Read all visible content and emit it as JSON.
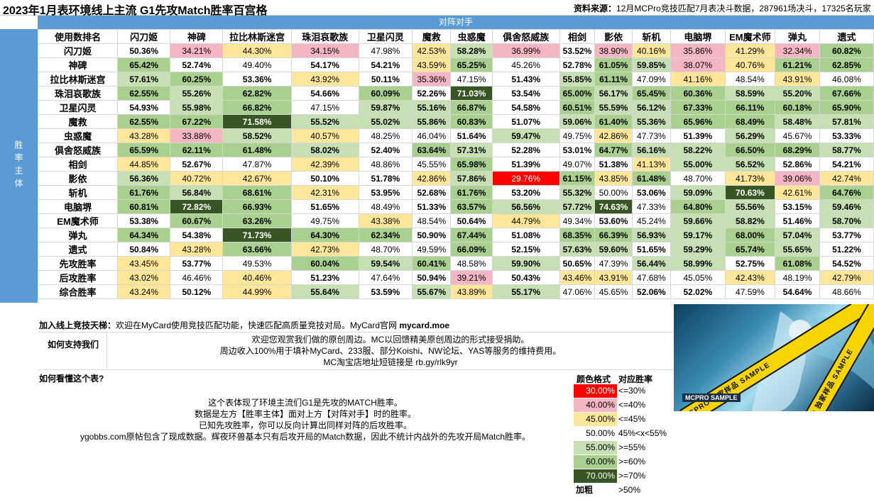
{
  "title": "2023年1月表环境线上主流 G1先攻Match胜率百宫格",
  "source_label": "资料来源：",
  "source_text": "12月MCPro竞技匹配7月表决斗数据，287961场决斗，17325名玩家",
  "opponent_header": "对阵对手",
  "subject_header": "胜率主体",
  "corner_label": "使用数排名",
  "columns": [
    "闪刀姬",
    "神碑",
    "拉比林斯迷宫",
    "珠泪哀歌族",
    "卫星闪灵",
    "魔救",
    "虫惑魔",
    "俱舍怒威族",
    "相剑",
    "影依",
    "斩机",
    "电脑堺",
    "EM魔术师",
    "弹丸",
    "遗式"
  ],
  "rows": [
    {
      "label": "闪刀姬",
      "values": [
        "50.36%",
        "34.21%",
        "44.30%",
        "34.15%",
        "47.98%",
        "42.53%",
        "58.28%",
        "36.99%",
        "53.52%",
        "38.90%",
        "40.16%",
        "35.86%",
        "41.29%",
        "32.34%",
        "60.82%"
      ],
      "classes": [
        "c4",
        "c2",
        "c3",
        "c2",
        "c4",
        "c3",
        "c5",
        "c2",
        "c4",
        "c2",
        "c3",
        "c2",
        "c3",
        "c2",
        "c6"
      ]
    },
    {
      "label": "神碑",
      "values": [
        "65.42%",
        "52.74%",
        "49.40%",
        "54.17%",
        "54.21%",
        "43.59%",
        "65.25%",
        "45.26%",
        "52.78%",
        "61.05%",
        "59.85%",
        "38.07%",
        "40.76%",
        "61.21%",
        "62.85%"
      ],
      "classes": [
        "c6",
        "c4",
        "c4",
        "c4",
        "c4",
        "c3",
        "c6",
        "c4",
        "c4",
        "c6",
        "c5",
        "c2",
        "c3",
        "c6",
        "c6"
      ]
    },
    {
      "label": "拉比林斯迷宫",
      "values": [
        "57.61%",
        "60.25%",
        "53.36%",
        "43.92%",
        "50.11%",
        "35.36%",
        "47.15%",
        "51.43%",
        "55.85%",
        "61.11%",
        "47.09%",
        "41.16%",
        "48.54%",
        "43.91%",
        "46.08%"
      ],
      "classes": [
        "c5",
        "c6",
        "c4",
        "c3",
        "c4",
        "c2",
        "c4",
        "c4",
        "c5",
        "c6",
        "c4",
        "c3",
        "c4",
        "c3",
        "c4"
      ]
    },
    {
      "label": "珠泪哀歌族",
      "values": [
        "62.55%",
        "55.26%",
        "62.82%",
        "54.66%",
        "60.09%",
        "52.26%",
        "71.03%",
        "53.54%",
        "65.00%",
        "56.17%",
        "65.45%",
        "60.36%",
        "58.59%",
        "55.20%",
        "67.66%"
      ],
      "classes": [
        "c6",
        "c5",
        "c6",
        "c4",
        "c6",
        "c4",
        "c7",
        "c4",
        "c6",
        "c5",
        "c6",
        "c6",
        "c5",
        "c5",
        "c6"
      ]
    },
    {
      "label": "卫星闪灵",
      "values": [
        "54.93%",
        "55.98%",
        "66.82%",
        "47.15%",
        "59.87%",
        "55.16%",
        "66.87%",
        "54.58%",
        "60.51%",
        "55.59%",
        "56.12%",
        "67.33%",
        "66.11%",
        "60.18%",
        "65.90%"
      ],
      "classes": [
        "c4",
        "c5",
        "c6",
        "c4",
        "c5",
        "c5",
        "c6",
        "c4",
        "c6",
        "c5",
        "c5",
        "c6",
        "c6",
        "c6",
        "c6"
      ]
    },
    {
      "label": "魔救",
      "values": [
        "62.55%",
        "67.22%",
        "71.58%",
        "55.52%",
        "55.02%",
        "55.86%",
        "60.83%",
        "51.07%",
        "59.06%",
        "61.40%",
        "55.36%",
        "65.96%",
        "68.49%",
        "58.48%",
        "57.81%"
      ],
      "classes": [
        "c6",
        "c6",
        "c7",
        "c5",
        "c5",
        "c5",
        "c6",
        "c4",
        "c5",
        "c6",
        "c5",
        "c6",
        "c6",
        "c5",
        "c5"
      ]
    },
    {
      "label": "虫惑魔",
      "values": [
        "43.28%",
        "33.88%",
        "58.52%",
        "40.57%",
        "48.25%",
        "46.04%",
        "51.64%",
        "59.47%",
        "49.75%",
        "42.86%",
        "47.73%",
        "51.39%",
        "56.29%",
        "45.67%",
        "53.33%"
      ],
      "classes": [
        "c3",
        "c2",
        "c5",
        "c3",
        "c4",
        "c4",
        "c4",
        "c5",
        "c4",
        "c3",
        "c4",
        "c4",
        "c5",
        "c4",
        "c4"
      ]
    },
    {
      "label": "俱舍怒威族",
      "values": [
        "65.59%",
        "62.11%",
        "61.48%",
        "58.02%",
        "52.40%",
        "63.64%",
        "57.31%",
        "52.28%",
        "53.01%",
        "64.77%",
        "56.16%",
        "58.22%",
        "66.50%",
        "68.29%",
        "58.77%"
      ],
      "classes": [
        "c6",
        "c6",
        "c6",
        "c5",
        "c4",
        "c6",
        "c5",
        "c4",
        "c4",
        "c6",
        "c5",
        "c5",
        "c6",
        "c6",
        "c5"
      ]
    },
    {
      "label": "相剑",
      "values": [
        "44.85%",
        "52.67%",
        "47.87%",
        "42.39%",
        "48.86%",
        "45.55%",
        "65.98%",
        "51.39%",
        "49.07%",
        "51.38%",
        "41.13%",
        "55.00%",
        "56.52%",
        "52.86%",
        "54.21%"
      ],
      "classes": [
        "c3",
        "c4",
        "c4",
        "c3",
        "c4",
        "c4",
        "c6",
        "c4",
        "c4",
        "c4",
        "c3",
        "c5",
        "c5",
        "c4",
        "c4"
      ]
    },
    {
      "label": "影依",
      "values": [
        "56.36%",
        "40.72%",
        "42.67%",
        "50.10%",
        "51.78%",
        "42.86%",
        "57.86%",
        "29.76%",
        "61.15%",
        "43.85%",
        "61.48%",
        "48.70%",
        "41.73%",
        "39.06%",
        "42.74%"
      ],
      "classes": [
        "c5",
        "c3",
        "c3",
        "c4",
        "c4",
        "c3",
        "c5",
        "c1",
        "c6",
        "c3",
        "c6",
        "c4",
        "c3",
        "c2",
        "c3"
      ]
    },
    {
      "label": "斩机",
      "values": [
        "61.76%",
        "56.84%",
        "68.61%",
        "42.31%",
        "53.95%",
        "52.68%",
        "61.76%",
        "53.20%",
        "55.32%",
        "50.00%",
        "53.06%",
        "59.09%",
        "70.63%",
        "42.61%",
        "64.76%"
      ],
      "classes": [
        "c6",
        "c5",
        "c6",
        "c3",
        "c4",
        "c4",
        "c6",
        "c4",
        "c5",
        "c4",
        "c4",
        "c5",
        "c7",
        "c3",
        "c6"
      ]
    },
    {
      "label": "电脑堺",
      "values": [
        "60.81%",
        "72.82%",
        "66.93%",
        "51.65%",
        "48.49%",
        "51.33%",
        "63.57%",
        "56.56%",
        "57.72%",
        "74.63%",
        "47.33%",
        "64.80%",
        "55.56%",
        "53.15%",
        "59.46%"
      ],
      "classes": [
        "c6",
        "c7",
        "c6",
        "c4",
        "c4",
        "c4",
        "c6",
        "c5",
        "c5",
        "c7",
        "c4",
        "c6",
        "c5",
        "c4",
        "c5"
      ]
    },
    {
      "label": "EM魔术师",
      "values": [
        "53.38%",
        "60.67%",
        "63.26%",
        "49.75%",
        "43.38%",
        "48.54%",
        "50.64%",
        "44.79%",
        "49.34%",
        "53.60%",
        "45.24%",
        "59.66%",
        "58.82%",
        "51.46%",
        "58.70%"
      ],
      "classes": [
        "c4",
        "c6",
        "c6",
        "c4",
        "c3",
        "c4",
        "c4",
        "c3",
        "c4",
        "c4",
        "c4",
        "c5",
        "c5",
        "c4",
        "c5"
      ]
    },
    {
      "label": "弹丸",
      "values": [
        "64.34%",
        "54.38%",
        "71.73%",
        "64.30%",
        "62.34%",
        "50.90%",
        "67.44%",
        "51.08%",
        "68.35%",
        "66.39%",
        "56.93%",
        "59.17%",
        "68.00%",
        "57.04%",
        "53.77%"
      ],
      "classes": [
        "c6",
        "c4",
        "c7",
        "c6",
        "c6",
        "c4",
        "c6",
        "c4",
        "c6",
        "c6",
        "c5",
        "c5",
        "c6",
        "c5",
        "c4"
      ]
    },
    {
      "label": "遗式",
      "values": [
        "50.84%",
        "43.28%",
        "63.66%",
        "42.73%",
        "48.70%",
        "49.59%",
        "66.09%",
        "52.15%",
        "57.63%",
        "59.60%",
        "51.65%",
        "59.29%",
        "65.74%",
        "55.65%",
        "51.22%"
      ],
      "classes": [
        "c4",
        "c3",
        "c6",
        "c3",
        "c4",
        "c4",
        "c6",
        "c4",
        "c5",
        "c5",
        "c4",
        "c5",
        "c6",
        "c5",
        "c4"
      ]
    },
    {
      "label": "先攻胜率",
      "values": [
        "43.45%",
        "53.77%",
        "49.53%",
        "60.04%",
        "59.54%",
        "60.41%",
        "48.58%",
        "59.90%",
        "50.65%",
        "47.39%",
        "56.44%",
        "58.99%",
        "52.75%",
        "61.08%",
        "54.52%"
      ],
      "classes": [
        "c3",
        "c4",
        "c4",
        "c6",
        "c5",
        "c6",
        "c4",
        "c5",
        "c4",
        "c4",
        "c5",
        "c5",
        "c4",
        "c6",
        "c4"
      ]
    },
    {
      "label": "后攻胜率",
      "values": [
        "43.02%",
        "46.46%",
        "40.46%",
        "51.23%",
        "47.64%",
        "50.94%",
        "39.21%",
        "50.43%",
        "43.46%",
        "43.91%",
        "47.68%",
        "45.05%",
        "42.43%",
        "48.19%",
        "42.79%"
      ],
      "classes": [
        "c3",
        "c4",
        "c3",
        "c4",
        "c4",
        "c4",
        "c2",
        "c4",
        "c3",
        "c3",
        "c4",
        "c4",
        "c3",
        "c4",
        "c3"
      ]
    },
    {
      "label": "综合胜率",
      "values": [
        "43.24%",
        "50.12%",
        "44.99%",
        "55.64%",
        "53.59%",
        "55.67%",
        "43.89%",
        "55.17%",
        "47.06%",
        "45.65%",
        "52.06%",
        "52.02%",
        "47.59%",
        "54.64%",
        "48.66%"
      ],
      "classes": [
        "c3",
        "c4",
        "c3",
        "c5",
        "c4",
        "c5",
        "c3",
        "c5",
        "c4",
        "c4",
        "c4",
        "c4",
        "c4",
        "c4",
        "c4"
      ]
    }
  ],
  "join": {
    "label": "加入线上竞技天梯：",
    "text": "欢迎在MyCard使用竞技匹配功能，快速匹配高质量竞技对局。MyCard官网 ",
    "link": "mycard.moe"
  },
  "support": {
    "label": "如何支持我们",
    "lines": [
      "欢迎您观赏我们做的原创周边。MC以回馈精美原创周边的形式接受捐助。",
      "周边收入100%用于填补MyCard、233服、部分Koishi、NW论坛、YAS等服务的维持费用。",
      "MC淘宝店地址短链接是 rb.gy/rlk9yr"
    ]
  },
  "howto": {
    "label": "如何看懂这个表?",
    "lines": [
      "这个表体现了环境主流们G1是先攻的MATCH胜率。",
      "数据是左方【胜率主体】面对上方【对阵对手】时的胜率。",
      "已知先攻胜率，你可以反向计算出同样对阵的后攻胜率。",
      "ygobbs.com原帖包含了现成数据。辉夜环兽基本只有后攻开局的Match数据，因此不统计内战外的先攻开局Match胜率。"
    ]
  },
  "legend": {
    "col1": "颜色格式",
    "col2": "对应胜率",
    "items": [
      {
        "sample": "30.00%",
        "range": "<=30%",
        "cls": "c1"
      },
      {
        "sample": "40.00%",
        "range": "<=40%",
        "cls": "c2"
      },
      {
        "sample": "45.00%",
        "range": "<=45%",
        "cls": "c3"
      },
      {
        "sample": "50.00%",
        "range": "45%<x<55%",
        "cls": "c4"
      },
      {
        "sample": "55.00%",
        "range": ">=55%",
        "cls": "c5"
      },
      {
        "sample": "60.00%",
        "range": ">=60%",
        "cls": "c6"
      },
      {
        "sample": "70.00%",
        "range": ">=70%",
        "cls": "c7"
      },
      {
        "sample": "加粗",
        "range": ">50%",
        "cls": "c4"
      }
    ]
  },
  "banner": {
    "tape1": "MCPRO 独家样品 SAMPLE",
    "tape2": "MCPRO 独家样品 SAMPLE",
    "logo": "MCPRO SAMPLE"
  }
}
